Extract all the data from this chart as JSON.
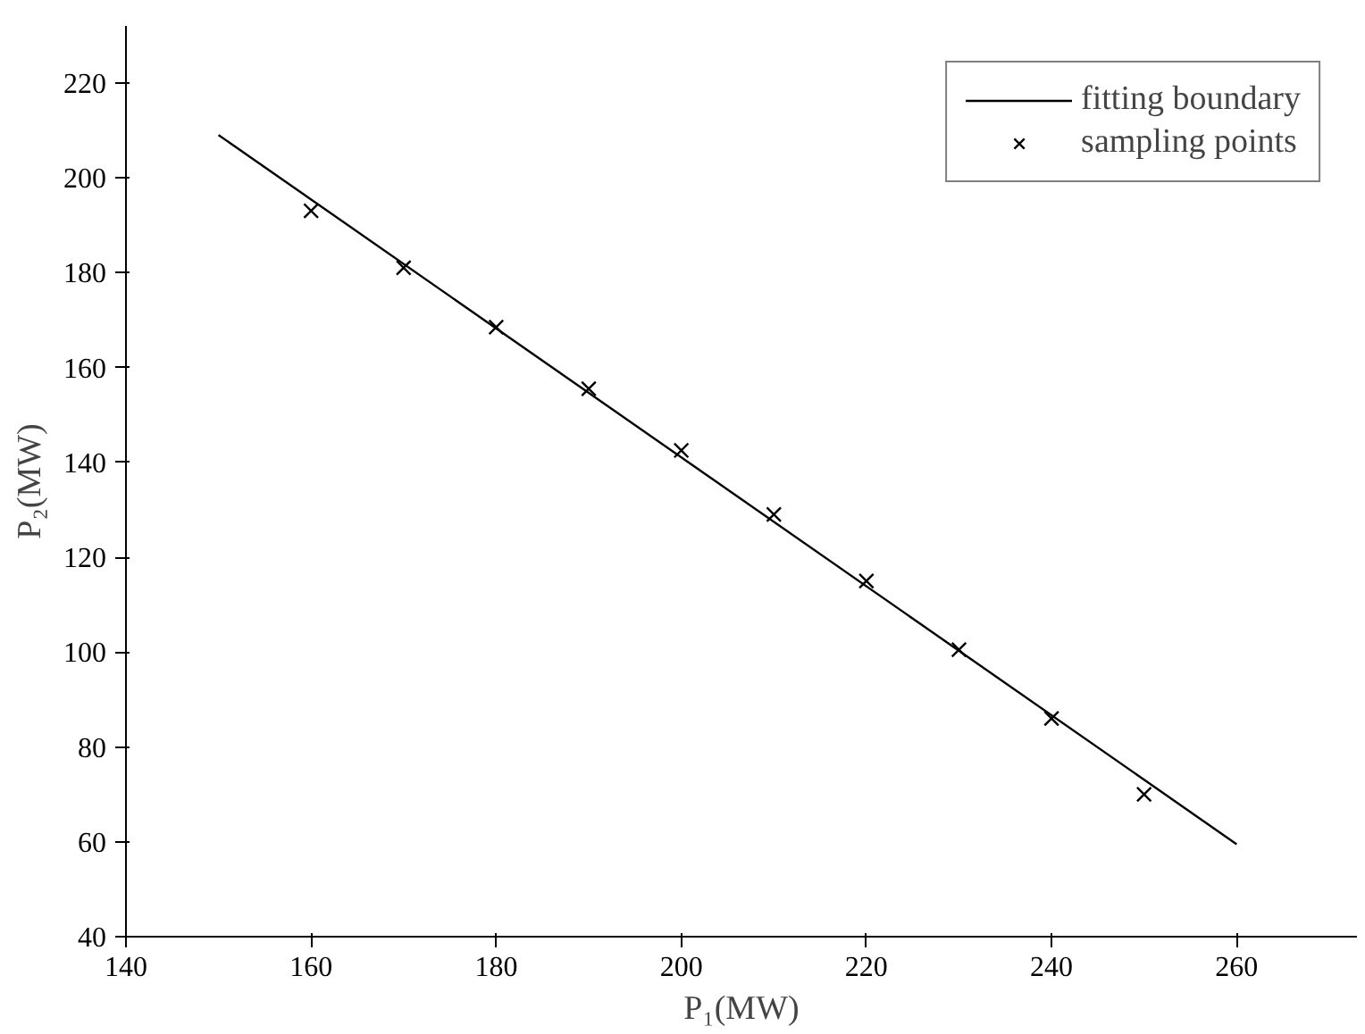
{
  "chart_data": {
    "type": "scatter",
    "xlabel": "P₁(MW)",
    "ylabel": "P₂(MW)",
    "xlim": [
      140,
      273
    ],
    "ylim": [
      40,
      232
    ],
    "xticks": [
      140,
      160,
      180,
      200,
      220,
      240,
      260
    ],
    "yticks": [
      40,
      60,
      80,
      100,
      120,
      140,
      160,
      180,
      200,
      220
    ],
    "grid": false,
    "legend": "top right",
    "series": [
      {
        "name": "fitting boundary",
        "type": "line",
        "color": "#000000",
        "line_style": "solid",
        "marker": "none",
        "x": [
          150,
          260
        ],
        "values": [
          209,
          59.5
        ]
      },
      {
        "name": "sampling points",
        "type": "scatter",
        "color": "#000000",
        "marker": "cross",
        "x": [
          160,
          170,
          180,
          190,
          200,
          210,
          220,
          230,
          240,
          250
        ],
        "values": [
          193,
          181,
          168.5,
          155.5,
          142.5,
          129,
          115,
          100.5,
          86,
          70
        ]
      }
    ]
  }
}
